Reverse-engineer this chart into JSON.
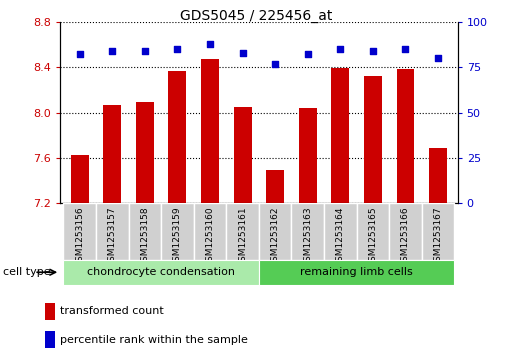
{
  "title": "GDS5045 / 225456_at",
  "samples": [
    "GSM1253156",
    "GSM1253157",
    "GSM1253158",
    "GSM1253159",
    "GSM1253160",
    "GSM1253161",
    "GSM1253162",
    "GSM1253163",
    "GSM1253164",
    "GSM1253165",
    "GSM1253166",
    "GSM1253167"
  ],
  "transformed_count": [
    7.63,
    8.07,
    8.09,
    8.37,
    8.47,
    8.05,
    7.49,
    8.04,
    8.39,
    8.32,
    8.38,
    7.69
  ],
  "percentile_rank": [
    82,
    84,
    84,
    85,
    88,
    83,
    77,
    82,
    85,
    84,
    85,
    80
  ],
  "ylim_left": [
    7.2,
    8.8
  ],
  "ylim_right": [
    0,
    100
  ],
  "yticks_left": [
    7.2,
    7.6,
    8.0,
    8.4,
    8.8
  ],
  "yticks_right": [
    0,
    25,
    50,
    75,
    100
  ],
  "bar_color": "#cc0000",
  "dot_color": "#0000cc",
  "cell_types": [
    {
      "label": "chondrocyte condensation",
      "start": 0,
      "end": 5,
      "color": "#aaeaaa"
    },
    {
      "label": "remaining limb cells",
      "start": 6,
      "end": 11,
      "color": "#55cc55"
    }
  ],
  "cell_type_label": "cell type",
  "legend_bar_label": "transformed count",
  "legend_dot_label": "percentile rank within the sample",
  "tick_label_color_left": "#cc0000",
  "tick_label_color_right": "#0000cc",
  "sample_box_color": "#d0d0d0",
  "bar_width": 0.55
}
